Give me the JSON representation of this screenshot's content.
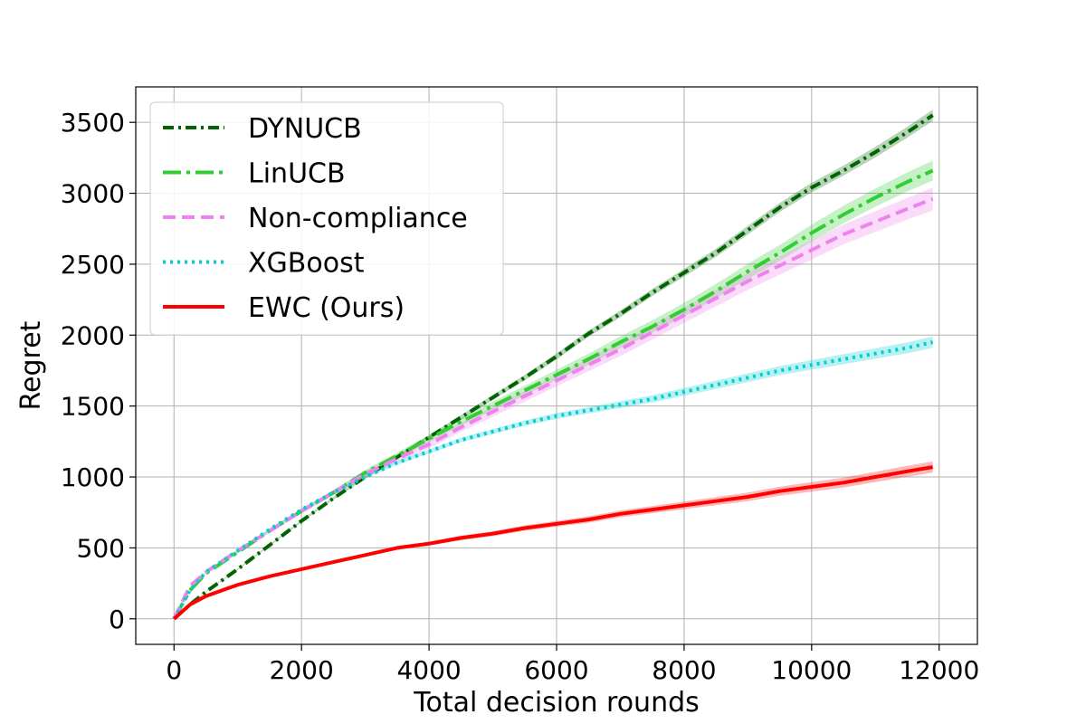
{
  "chart_data": {
    "type": "line",
    "title": "",
    "xlabel": "Total decision rounds",
    "ylabel": "Regret",
    "xlim": [
      -600,
      12600
    ],
    "ylim": [
      -180,
      3750
    ],
    "xticks": [
      0,
      2000,
      4000,
      6000,
      8000,
      10000,
      12000
    ],
    "yticks": [
      0,
      500,
      1000,
      1500,
      2000,
      2500,
      3000,
      3500
    ],
    "grid": true,
    "legend_position": "top-left",
    "series": [
      {
        "name": "DYNUCB",
        "color": "#006400",
        "dash": "dashdot",
        "x": [
          0,
          250,
          500,
          1000,
          1500,
          2000,
          2500,
          3000,
          3500,
          4000,
          4500,
          5000,
          5500,
          6000,
          6500,
          7000,
          7500,
          8000,
          8500,
          9000,
          9500,
          10000,
          10500,
          11000,
          11500,
          11900
        ],
        "y": [
          0,
          100,
          190,
          350,
          520,
          690,
          850,
          1000,
          1140,
          1280,
          1420,
          1560,
          1700,
          1850,
          2010,
          2150,
          2300,
          2440,
          2580,
          2740,
          2900,
          3040,
          3160,
          3290,
          3430,
          3550
        ],
        "band": 40
      },
      {
        "name": "LinUCB",
        "color": "#32cd32",
        "dash": "dashdotlong",
        "x": [
          0,
          250,
          500,
          1000,
          1500,
          2000,
          2500,
          3000,
          3500,
          4000,
          4500,
          5000,
          5500,
          6000,
          6500,
          7000,
          7500,
          8000,
          8500,
          9000,
          9500,
          10000,
          10500,
          11000,
          11500,
          11900
        ],
        "y": [
          0,
          200,
          320,
          470,
          620,
          760,
          890,
          1030,
          1150,
          1270,
          1390,
          1500,
          1610,
          1720,
          1830,
          1950,
          2060,
          2180,
          2310,
          2450,
          2580,
          2720,
          2850,
          2970,
          3080,
          3160
        ],
        "band": 70
      },
      {
        "name": "Non-compliance",
        "color": "#ee82ee",
        "dash": "dashed",
        "x": [
          0,
          250,
          500,
          1000,
          1500,
          2000,
          2500,
          3000,
          3500,
          4000,
          4500,
          5000,
          5500,
          6000,
          6500,
          7000,
          7500,
          8000,
          8500,
          9000,
          9500,
          10000,
          10500,
          11000,
          11500,
          11900
        ],
        "y": [
          0,
          230,
          330,
          480,
          620,
          760,
          890,
          1020,
          1130,
          1230,
          1350,
          1460,
          1570,
          1680,
          1790,
          1900,
          2020,
          2140,
          2260,
          2380,
          2490,
          2600,
          2710,
          2800,
          2890,
          2960
        ],
        "band": 80
      },
      {
        "name": "XGBoost",
        "color": "#00ced1",
        "dash": "dotted",
        "x": [
          0,
          250,
          500,
          1000,
          1500,
          2000,
          2500,
          3000,
          3500,
          4000,
          4500,
          5000,
          5500,
          6000,
          6500,
          7000,
          7500,
          8000,
          8500,
          9000,
          9500,
          10000,
          10500,
          11000,
          11500,
          11900
        ],
        "y": [
          0,
          200,
          330,
          480,
          630,
          770,
          890,
          1000,
          1100,
          1180,
          1260,
          1320,
          1380,
          1430,
          1470,
          1510,
          1550,
          1600,
          1650,
          1700,
          1750,
          1790,
          1830,
          1870,
          1910,
          1950
        ],
        "band": 40
      },
      {
        "name": "EWC (Ours)",
        "color": "#ff0000",
        "dash": "solid",
        "x": [
          0,
          250,
          500,
          1000,
          1500,
          2000,
          2500,
          3000,
          3500,
          4000,
          4500,
          5000,
          5500,
          6000,
          6500,
          7000,
          7500,
          8000,
          8500,
          9000,
          9500,
          10000,
          10500,
          11000,
          11500,
          11900
        ],
        "y": [
          0,
          100,
          160,
          240,
          300,
          350,
          400,
          450,
          500,
          530,
          570,
          600,
          640,
          670,
          700,
          740,
          770,
          800,
          830,
          860,
          900,
          930,
          960,
          1000,
          1040,
          1070
        ],
        "band": 40
      }
    ]
  }
}
